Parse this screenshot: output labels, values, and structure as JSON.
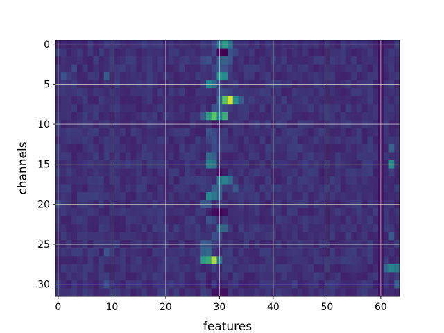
{
  "chart_data": {
    "type": "heatmap",
    "title": "",
    "xlabel": "features",
    "ylabel": "channels",
    "n_cols": 64,
    "n_rows": 32,
    "x_ticks": [
      0,
      10,
      20,
      30,
      40,
      50,
      60
    ],
    "y_ticks": [
      0,
      5,
      10,
      15,
      20,
      25,
      30
    ],
    "xlim": [
      -0.5,
      63.5
    ],
    "ylim": [
      31.5,
      -0.5
    ],
    "grid": true,
    "colormap": "viridis",
    "value_range": [
      0,
      1
    ],
    "background_level": 0.14,
    "cells": [
      [
        0,
        30,
        0.4
      ],
      [
        0,
        31,
        0.55
      ],
      [
        0,
        32,
        0.38
      ],
      [
        0,
        29,
        0.22
      ],
      [
        0,
        60,
        0.05
      ],
      [
        0,
        61,
        0.1
      ],
      [
        1,
        30,
        0.02
      ],
      [
        1,
        31,
        0.0
      ],
      [
        1,
        32,
        0.25
      ],
      [
        1,
        29,
        0.2
      ],
      [
        1,
        33,
        0.22
      ],
      [
        1,
        60,
        0.04
      ],
      [
        2,
        30,
        0.3
      ],
      [
        2,
        31,
        0.32
      ],
      [
        2,
        32,
        0.26
      ],
      [
        2,
        27,
        0.22
      ],
      [
        2,
        28,
        0.24
      ],
      [
        2,
        60,
        0.05
      ],
      [
        3,
        29,
        0.22
      ],
      [
        3,
        30,
        0.28
      ],
      [
        3,
        31,
        0.25
      ],
      [
        3,
        3,
        0.22
      ],
      [
        3,
        60,
        0.05
      ],
      [
        4,
        30,
        0.52
      ],
      [
        4,
        31,
        0.48
      ],
      [
        4,
        1,
        0.25
      ],
      [
        4,
        9,
        0.28
      ],
      [
        4,
        60,
        0.05
      ],
      [
        5,
        28,
        0.45
      ],
      [
        5,
        29,
        0.35
      ],
      [
        5,
        30,
        0.2
      ],
      [
        5,
        60,
        0.05
      ],
      [
        6,
        30,
        0.24
      ],
      [
        6,
        31,
        0.22
      ],
      [
        6,
        32,
        0.2
      ],
      [
        6,
        60,
        0.05
      ],
      [
        7,
        31,
        0.72
      ],
      [
        7,
        32,
        0.95
      ],
      [
        7,
        33,
        0.48
      ],
      [
        7,
        30,
        0.35
      ],
      [
        7,
        34,
        0.3
      ],
      [
        7,
        60,
        0.05
      ],
      [
        8,
        29,
        0.25
      ],
      [
        8,
        30,
        0.28
      ],
      [
        8,
        31,
        0.22
      ],
      [
        8,
        60,
        0.05
      ],
      [
        9,
        28,
        0.55
      ],
      [
        9,
        29,
        0.75
      ],
      [
        9,
        30,
        0.45
      ],
      [
        9,
        31,
        0.62
      ],
      [
        9,
        27,
        0.3
      ],
      [
        9,
        60,
        0.05
      ],
      [
        10,
        29,
        0.05
      ],
      [
        10,
        30,
        0.08
      ],
      [
        10,
        60,
        0.05
      ],
      [
        11,
        28,
        0.25
      ],
      [
        11,
        29,
        0.22
      ],
      [
        11,
        60,
        0.05
      ],
      [
        12,
        28,
        0.2
      ],
      [
        12,
        29,
        0.24
      ],
      [
        12,
        60,
        0.05
      ],
      [
        13,
        29,
        0.22
      ],
      [
        13,
        30,
        0.2
      ],
      [
        13,
        62,
        0.3
      ],
      [
        13,
        60,
        0.05
      ],
      [
        14,
        28,
        0.35
      ],
      [
        14,
        29,
        0.3
      ],
      [
        14,
        60,
        0.05
      ],
      [
        15,
        28,
        0.45
      ],
      [
        15,
        29,
        0.4
      ],
      [
        15,
        62,
        0.5
      ],
      [
        15,
        60,
        0.05
      ],
      [
        16,
        30,
        0.04
      ],
      [
        16,
        31,
        0.08
      ],
      [
        16,
        60,
        0.05
      ],
      [
        17,
        30,
        0.4
      ],
      [
        17,
        31,
        0.44
      ],
      [
        17,
        32,
        0.35
      ],
      [
        17,
        60,
        0.05
      ],
      [
        18,
        29,
        0.3
      ],
      [
        18,
        30,
        0.32
      ],
      [
        18,
        33,
        0.28
      ],
      [
        18,
        60,
        0.05
      ],
      [
        19,
        28,
        0.45
      ],
      [
        19,
        29,
        0.4
      ],
      [
        19,
        30,
        0.3
      ],
      [
        19,
        60,
        0.05
      ],
      [
        20,
        27,
        0.28
      ],
      [
        20,
        28,
        0.26
      ],
      [
        20,
        0,
        0.22
      ],
      [
        20,
        60,
        0.05
      ],
      [
        21,
        29,
        0.04
      ],
      [
        21,
        30,
        0.02
      ],
      [
        21,
        31,
        0.05
      ],
      [
        21,
        60,
        0.05
      ],
      [
        22,
        28,
        0.25
      ],
      [
        22,
        29,
        0.22
      ],
      [
        22,
        60,
        0.05
      ],
      [
        23,
        30,
        0.35
      ],
      [
        23,
        31,
        0.32
      ],
      [
        23,
        60,
        0.05
      ],
      [
        24,
        29,
        0.24
      ],
      [
        24,
        30,
        0.22
      ],
      [
        24,
        62,
        0.28
      ],
      [
        24,
        60,
        0.05
      ],
      [
        25,
        27,
        0.3
      ],
      [
        25,
        28,
        0.28
      ],
      [
        25,
        60,
        0.05
      ],
      [
        26,
        27,
        0.32
      ],
      [
        26,
        28,
        0.35
      ],
      [
        26,
        9,
        0.26
      ],
      [
        26,
        60,
        0.05
      ],
      [
        27,
        27,
        0.55
      ],
      [
        27,
        28,
        0.6
      ],
      [
        27,
        29,
        0.88
      ],
      [
        27,
        30,
        0.4
      ],
      [
        27,
        60,
        0.05
      ],
      [
        28,
        29,
        0.2
      ],
      [
        28,
        62,
        0.45
      ],
      [
        28,
        63,
        0.4
      ],
      [
        28,
        61,
        0.35
      ],
      [
        28,
        60,
        0.05
      ],
      [
        29,
        28,
        0.1
      ],
      [
        29,
        29,
        0.12
      ],
      [
        29,
        60,
        0.05
      ],
      [
        30,
        28,
        0.08
      ],
      [
        30,
        30,
        0.1
      ],
      [
        30,
        9,
        0.24
      ],
      [
        30,
        63,
        0.3
      ],
      [
        30,
        60,
        0.05
      ],
      [
        31,
        29,
        0.05
      ],
      [
        31,
        30,
        0.06
      ],
      [
        31,
        31,
        0.04
      ],
      [
        31,
        60,
        0.05
      ]
    ]
  }
}
